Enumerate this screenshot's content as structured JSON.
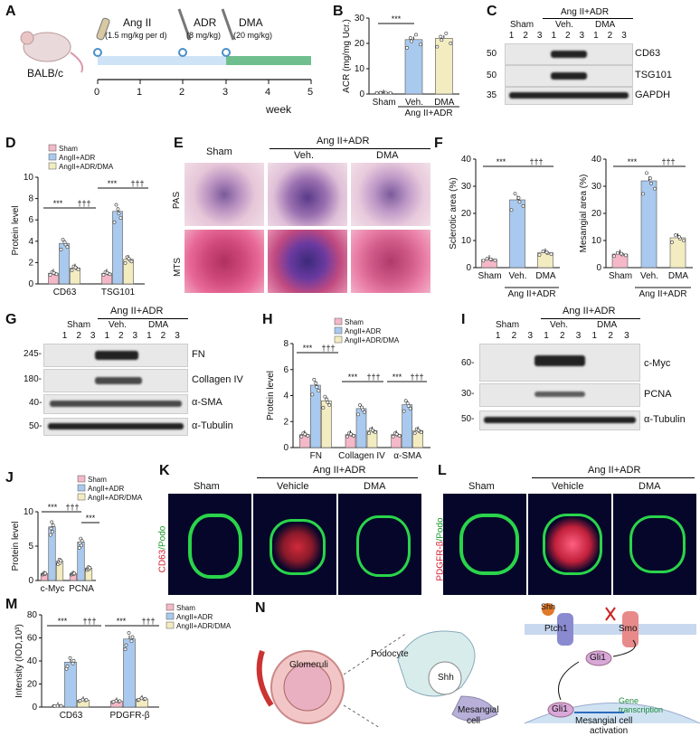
{
  "panels": {
    "A": "A",
    "B": "B",
    "C": "C",
    "D": "D",
    "E": "E",
    "F": "F",
    "G": "G",
    "H": "H",
    "I": "I",
    "J": "J",
    "K": "K",
    "L": "L",
    "M": "M",
    "N": "N"
  },
  "A": {
    "mouse": "BALB/c",
    "drugs": [
      {
        "name": "Ang II",
        "dose": "(1.5 mg/kg per d)"
      },
      {
        "name": "ADR",
        "dose": "(8 mg/kg)"
      },
      {
        "name": "DMA",
        "dose": "(20 mg/kg)"
      }
    ],
    "ticks": [
      "0",
      "1",
      "2",
      "3",
      "4",
      "5"
    ],
    "axis_label": "week"
  },
  "groups": {
    "sham": "Sham",
    "veh": "Veh.",
    "dma": "DMA",
    "angadr": "Ang II+ADR",
    "vehicle": "Vehicle"
  },
  "legend3": [
    "Sham",
    "AngII+ADR",
    "AngII+ADR/DMA"
  ],
  "sig": {
    "p3": "***",
    "d3": "†††"
  },
  "lanes": [
    "1",
    "2",
    "3",
    "1",
    "2",
    "3",
    "1",
    "2",
    "3"
  ],
  "C": {
    "markers": [
      {
        "mw": "50",
        "name": "CD63"
      },
      {
        "mw": "50",
        "name": "TSG101"
      },
      {
        "mw": "35",
        "name": "GAPDH"
      }
    ]
  },
  "G": {
    "markers": [
      {
        "mw": "245-",
        "name": "FN"
      },
      {
        "mw": "180-",
        "name": "Collagen IV"
      },
      {
        "mw": "40-",
        "name": "α-SMA"
      },
      {
        "mw": "50-",
        "name": "α-Tubulin"
      }
    ]
  },
  "I": {
    "markers": [
      {
        "mw": "60-",
        "name": "c-Myc"
      },
      {
        "mw": "30-",
        "name": "PCNA"
      },
      {
        "mw": "50-",
        "name": "α-Tubulin"
      }
    ]
  },
  "E": {
    "rows": [
      "PAS",
      "MTS"
    ]
  },
  "K": {
    "ylabel_a": "CD63",
    "ylabel_b": "/Podo"
  },
  "L": {
    "ylabel_a": "PDGFR-β",
    "ylabel_b": "/Podo"
  },
  "N": {
    "labels": {
      "glomeruli": "Glomeruli",
      "podocyte": "Podocyte",
      "shh": "Shh",
      "ptch1": "Ptch1",
      "smo": "Smo",
      "gli1": "Gli1",
      "gene": "Gene",
      "transcription": "transcription",
      "mesangial": "Mesangial",
      "cell": "cell",
      "activation1": "Mesangial cell",
      "activation2": "activation"
    }
  },
  "chart_data": [
    {
      "panel": "B",
      "type": "bar",
      "title": "",
      "ylabel": "ACR (mg/mg Ucr.)",
      "ylim": [
        0,
        30
      ],
      "yticks": [
        0,
        10,
        20,
        30
      ],
      "categories": [
        "Sham",
        "Veh.",
        "DMA"
      ],
      "values": [
        0.5,
        21.5,
        22
      ],
      "colors": [
        "#f4b8c8",
        "#a9c9ee",
        "#f3ecc0"
      ]
    },
    {
      "panel": "D",
      "type": "bar",
      "ylabel": "Protein level",
      "ylim": [
        0,
        10
      ],
      "yticks": [
        0,
        2,
        4,
        6,
        8,
        10
      ],
      "categories": [
        "CD63",
        "TSG101"
      ],
      "series": [
        {
          "name": "Sham",
          "values": [
            1,
            1
          ]
        },
        {
          "name": "AngII+ADR",
          "values": [
            3.8,
            6.8
          ]
        },
        {
          "name": "AngII+ADR/DMA",
          "values": [
            1.5,
            2.3
          ]
        }
      ]
    },
    {
      "panel": "F1",
      "type": "bar",
      "ylabel": "Sclerotic area (%)",
      "ylim": [
        0,
        40
      ],
      "yticks": [
        0,
        10,
        20,
        30,
        40
      ],
      "categories": [
        "Sham",
        "Veh.",
        "DMA"
      ],
      "values": [
        3,
        25,
        5.5
      ]
    },
    {
      "panel": "F2",
      "type": "bar",
      "ylabel": "Mesangial area (%)",
      "ylim": [
        0,
        40
      ],
      "yticks": [
        0,
        10,
        20,
        30,
        40
      ],
      "categories": [
        "Sham",
        "Veh.",
        "DMA"
      ],
      "values": [
        5,
        32,
        11
      ]
    },
    {
      "panel": "H",
      "type": "bar",
      "ylabel": "Protein level",
      "ylim": [
        0,
        8
      ],
      "yticks": [
        0,
        2,
        4,
        6,
        8
      ],
      "categories": [
        "FN",
        "Collagen IV",
        "α-SMA"
      ],
      "series": [
        {
          "name": "Sham",
          "values": [
            1,
            1,
            1
          ]
        },
        {
          "name": "AngII+ADR",
          "values": [
            4.8,
            3,
            3.3
          ]
        },
        {
          "name": "AngII+ADR/DMA",
          "values": [
            3.6,
            1.3,
            1.3
          ]
        }
      ]
    },
    {
      "panel": "J",
      "type": "bar",
      "ylabel": "Protein level",
      "ylim": [
        0,
        10
      ],
      "yticks": [
        0,
        5,
        10
      ],
      "categories": [
        "c-Myc",
        "PCNA"
      ],
      "series": [
        {
          "name": "Sham",
          "values": [
            1,
            1
          ]
        },
        {
          "name": "AngII+ADR",
          "values": [
            7.8,
            5.6
          ]
        },
        {
          "name": "AngII+ADR/DMA",
          "values": [
            2.8,
            1.8
          ]
        }
      ]
    },
    {
      "panel": "M",
      "type": "bar",
      "ylabel": "Intensity (IOD,10³)",
      "ylim": [
        0,
        80
      ],
      "yticks": [
        0,
        20,
        40,
        60,
        80
      ],
      "categories": [
        "CD63",
        "PDGFR-β"
      ],
      "series": [
        {
          "name": "Sham",
          "values": [
            1,
            5
          ]
        },
        {
          "name": "AngII+ADR",
          "values": [
            39,
            59
          ]
        },
        {
          "name": "AngII+ADR/DMA",
          "values": [
            6,
            7
          ]
        }
      ]
    }
  ]
}
